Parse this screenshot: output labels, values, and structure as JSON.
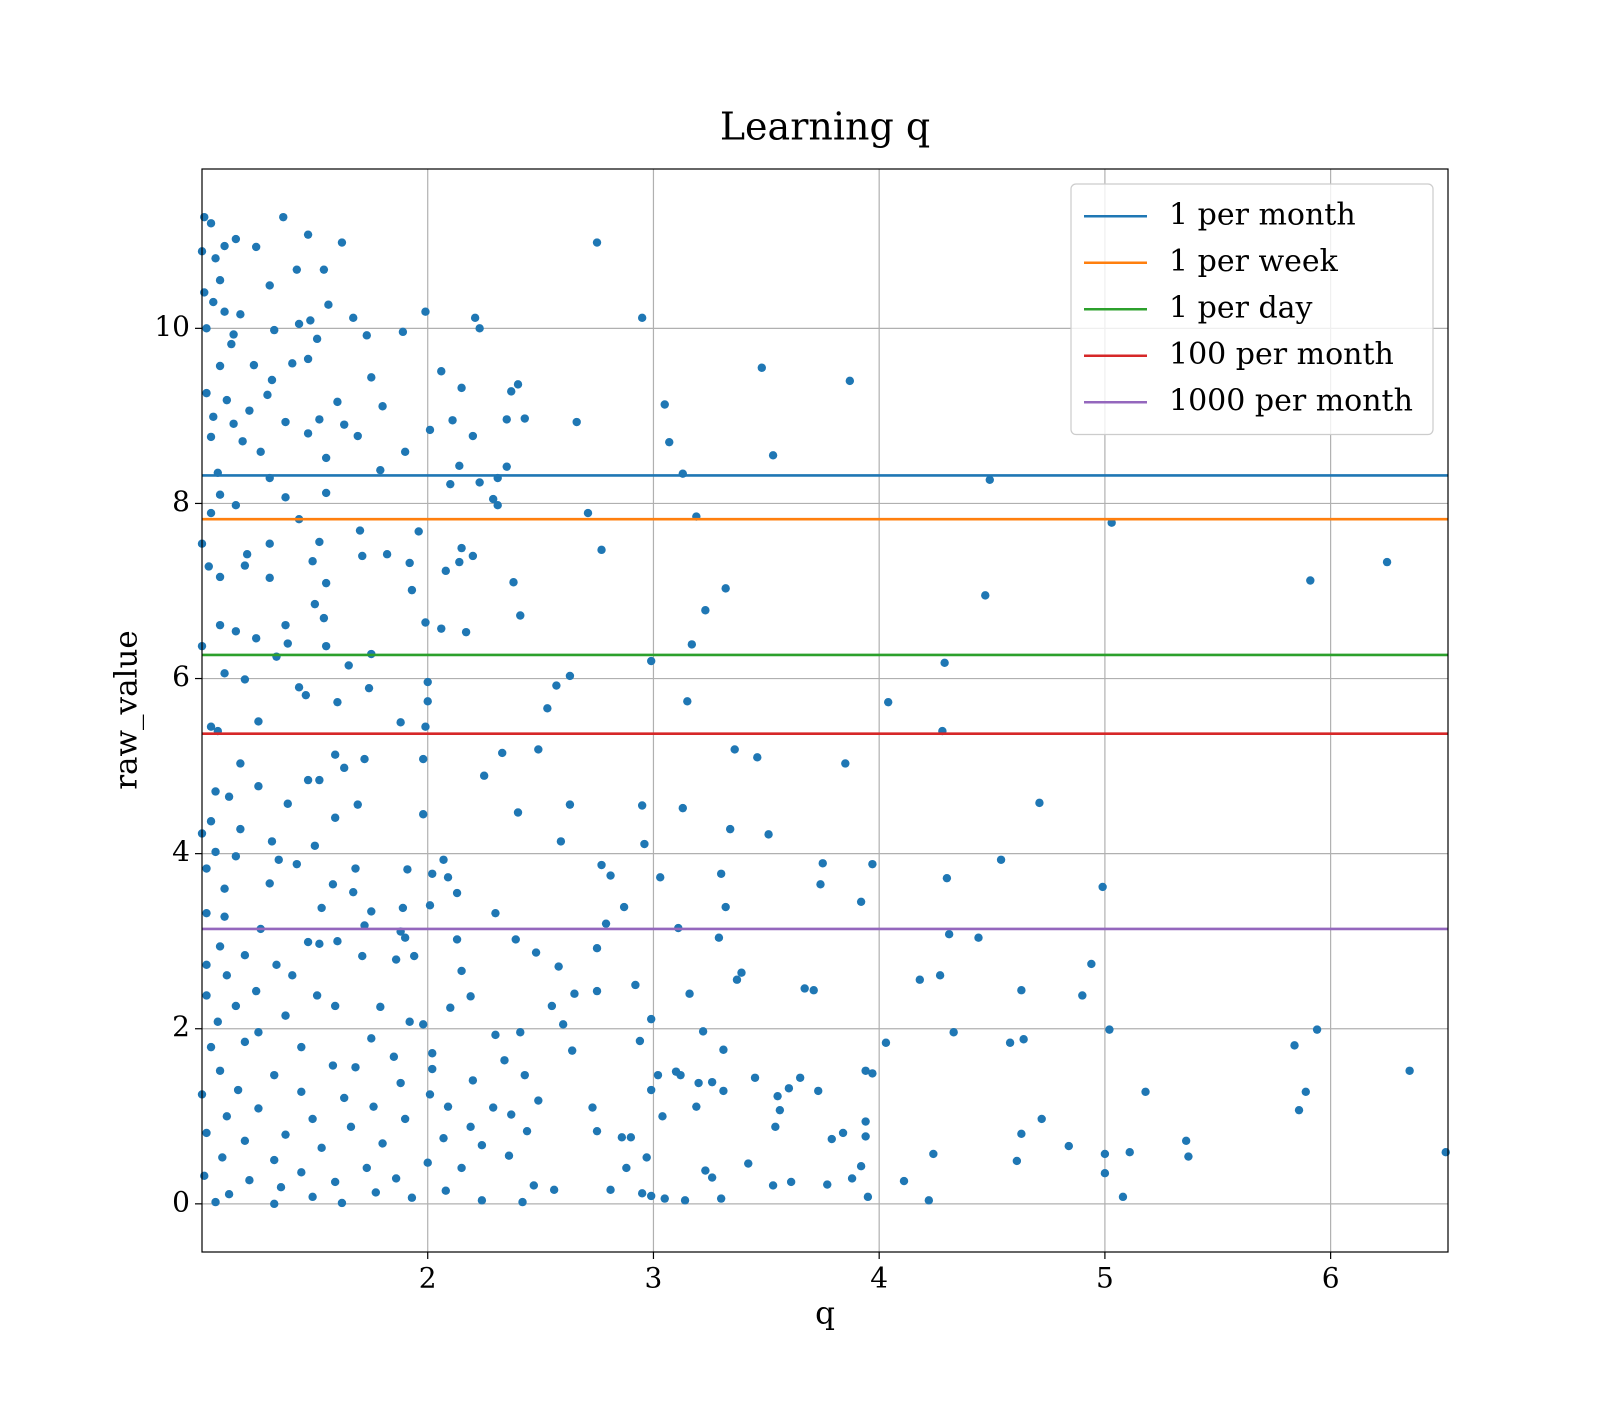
{
  "chart_data": {
    "type": "scatter",
    "title": "Learning q",
    "xlabel": "q",
    "ylabel": "raw_value",
    "xlim": [
      1.0,
      6.52
    ],
    "ylim": [
      -0.55,
      11.82
    ],
    "xticks": [
      2,
      3,
      4,
      5,
      6
    ],
    "yticks": [
      0,
      2,
      4,
      6,
      8,
      10
    ],
    "grid": true,
    "legend": "upper right",
    "points": {
      "color": "#1f77b4",
      "x": [
        2.75,
        2.95,
        3.48,
        3.87,
        3.05,
        3.07,
        3.53,
        3.13,
        4.49,
        3.19,
        2.71,
        5.03,
        2.77,
        3.32,
        6.25,
        5.91,
        4.47,
        3.23,
        3.17,
        2.99,
        4.29,
        2.63,
        2.57,
        2.53,
        3.15,
        4.04,
        4.28,
        3.36,
        3.46,
        3.85,
        2.49,
        2.33,
        4.71,
        2.63,
        2.95,
        3.13,
        2.4,
        3.34,
        3.51,
        2.59,
        2.96,
        4.54,
        3.97,
        3.75,
        2.77,
        2.81,
        3.3,
        3.03,
        4.3,
        4.99,
        3.74,
        3.92,
        2.87,
        3.32,
        2.3,
        2.79,
        3.11,
        4.31,
        4.44,
        3.29,
        2.39,
        2.75,
        2.48,
        4.94,
        2.58,
        3.39,
        4.27,
        4.18,
        3.37,
        2.92,
        3.67,
        3.71,
        4.63,
        2.75,
        4.9,
        3.16,
        2.65,
        2.55,
        2.99,
        2.6,
        5.94,
        5.02,
        3.22,
        4.33,
        2.41,
        4.03,
        4.58,
        4.64,
        5.84,
        2.94,
        3.31,
        2.64,
        6.35,
        3.94,
        3.97,
        3.1,
        3.12,
        3.45,
        3.65,
        3.02,
        3.26,
        3.2,
        3.6,
        2.99,
        3.31,
        3.73,
        5.18,
        5.89,
        3.55,
        3.19,
        2.73,
        5.86,
        3.56,
        3.04,
        4.72,
        3.84,
        3.54,
        3.94,
        4.63,
        2.75,
        2.86,
        2.9,
        3.79,
        5.36,
        3.94,
        4.84,
        6.51,
        5.11,
        5.0,
        4.24,
        2.97,
        4.61,
        5.37,
        3.42,
        3.92,
        3.23,
        3.26,
        3.88,
        5.0,
        2.88,
        4.11,
        3.53,
        3.77,
        3.61,
        2.95,
        5.08,
        3.95,
        2.99,
        3.05,
        3.14,
        3.3,
        4.22,
        2.81,
        2.56,
        1.01,
        1.04,
        1.36,
        1.47,
        1.15,
        1.62,
        1.24,
        1.1,
        1.0,
        1.06,
        1.54,
        1.42,
        1.08,
        1.3,
        1.01,
        1.05,
        1.56,
        1.1,
        1.99,
        1.17,
        1.67,
        2.21,
        1.48,
        1.43,
        2.23,
        1.02,
        1.32,
        1.89,
        1.14,
        1.73,
        1.51,
        1.13,
        1.47,
        1.23,
        1.08,
        1.4,
        2.06,
        1.75,
        1.31,
        2.15,
        2.4,
        2.37,
        1.02,
        1.6,
        1.11,
        1.8,
        1.29,
        1.21,
        1.05,
        1.52,
        2.35,
        2.11,
        2.43,
        1.37,
        1.14,
        2.66,
        2.01,
        1.63,
        1.47,
        2.2,
        1.04,
        1.69,
        1.18,
        1.26,
        1.9,
        1.55,
        1.79,
        1.07,
        2.14,
        2.35,
        1.3,
        2.31,
        2.1,
        2.23,
        1.55,
        1.08,
        1.37,
        2.29,
        1.04,
        2.31,
        1.43,
        1.15,
        1.96,
        1.7,
        1.52,
        1.3,
        2.15,
        1.0,
        1.82,
        1.71,
        2.2,
        1.2,
        2.14,
        1.49,
        1.92,
        1.19,
        1.03,
        2.08,
        1.3,
        2.38,
        1.08,
        1.55,
        1.93,
        2.41,
        1.5,
        1.54,
        1.99,
        2.06,
        2.17,
        1.08,
        1.15,
        1.37,
        1.24,
        1.0,
        1.55,
        1.38,
        1.65,
        1.33,
        1.75,
        1.1,
        2.0,
        1.43,
        1.19,
        1.74,
        1.46,
        1.6,
        2.0,
        1.25,
        1.88,
        1.04,
        1.99,
        1.07,
        1.59,
        1.98,
        1.72,
        1.17,
        1.52,
        1.63,
        2.25,
        1.25,
        1.47,
        1.12,
        1.06,
        1.69,
        1.38,
        1.59,
        1.98,
        1.04,
        1.17,
        1.0,
        1.31,
        1.5,
        1.06,
        1.15,
        2.07,
        1.34,
        1.42,
        1.68,
        1.91,
        1.02,
        2.02,
        2.09,
        1.58,
        1.3,
        1.1,
        1.67,
        2.13,
        2.01,
        1.89,
        1.53,
        1.75,
        1.02,
        1.1,
        1.26,
        1.72,
        1.88,
        2.13,
        1.9,
        1.52,
        1.08,
        1.19,
        1.47,
        1.6,
        1.94,
        1.86,
        1.33,
        1.71,
        1.02,
        1.11,
        2.15,
        1.4,
        1.24,
        1.02,
        2.19,
        1.51,
        1.15,
        1.59,
        1.79,
        2.1,
        1.37,
        1.92,
        1.07,
        1.98,
        1.25,
        1.19,
        1.75,
        2.3,
        1.04,
        1.44,
        2.02,
        1.85,
        2.34,
        1.58,
        1.08,
        2.02,
        1.68,
        1.32,
        1.88,
        2.2,
        1.16,
        2.43,
        1.44,
        1.0,
        2.01,
        1.63,
        1.76,
        1.25,
        2.09,
        2.29,
        2.49,
        1.11,
        1.49,
        1.9,
        2.37,
        1.66,
        1.02,
        2.19,
        1.37,
        2.44,
        1.19,
        2.07,
        1.8,
        1.53,
        2.24,
        2.36,
        1.09,
        1.32,
        2.0,
        1.73,
        2.15,
        1.44,
        1.01,
        1.86,
        1.21,
        1.59,
        2.47,
        1.35,
        2.08,
        1.77,
        1.12,
        1.49,
        1.93,
        2.24,
        2.42,
        1.62,
        1.32,
        1.06
      ],
      "y": [
        10.98,
        10.12,
        9.55,
        9.4,
        9.13,
        8.7,
        8.55,
        8.34,
        8.27,
        7.85,
        7.89,
        7.78,
        7.47,
        7.03,
        7.33,
        7.12,
        6.95,
        6.78,
        6.39,
        6.2,
        6.18,
        6.03,
        5.92,
        5.66,
        5.74,
        5.73,
        5.4,
        5.19,
        5.1,
        5.03,
        5.19,
        5.15,
        4.58,
        4.56,
        4.55,
        4.52,
        4.47,
        4.28,
        4.22,
        4.14,
        4.11,
        3.93,
        3.88,
        3.89,
        3.87,
        3.75,
        3.77,
        3.73,
        3.72,
        3.62,
        3.65,
        3.45,
        3.39,
        3.39,
        3.32,
        3.2,
        3.15,
        3.08,
        3.04,
        3.04,
        3.02,
        2.92,
        2.87,
        2.74,
        2.71,
        2.64,
        2.61,
        2.56,
        2.56,
        2.5,
        2.46,
        2.44,
        2.44,
        2.43,
        2.38,
        2.4,
        2.4,
        2.26,
        2.11,
        2.05,
        1.99,
        1.99,
        1.97,
        1.96,
        1.96,
        1.84,
        1.84,
        1.88,
        1.81,
        1.86,
        1.76,
        1.75,
        1.52,
        1.52,
        1.49,
        1.51,
        1.47,
        1.44,
        1.44,
        1.47,
        1.39,
        1.38,
        1.32,
        1.3,
        1.29,
        1.29,
        1.28,
        1.28,
        1.23,
        1.11,
        1.1,
        1.07,
        1.07,
        1.0,
        0.97,
        0.81,
        0.88,
        0.94,
        0.8,
        0.83,
        0.76,
        0.76,
        0.74,
        0.72,
        0.77,
        0.66,
        0.59,
        0.59,
        0.57,
        0.57,
        0.53,
        0.49,
        0.54,
        0.46,
        0.43,
        0.38,
        0.3,
        0.29,
        0.35,
        0.41,
        0.26,
        0.21,
        0.22,
        0.25,
        0.12,
        0.08,
        0.08,
        0.09,
        0.06,
        0.04,
        0.06,
        0.04,
        0.16,
        0.16,
        11.27,
        11.2,
        11.27,
        11.07,
        11.02,
        10.98,
        10.93,
        10.94,
        10.88,
        10.8,
        10.67,
        10.67,
        10.55,
        10.49,
        10.41,
        10.3,
        10.27,
        10.19,
        10.19,
        10.16,
        10.12,
        10.12,
        10.09,
        10.05,
        10.0,
        10.0,
        9.98,
        9.96,
        9.93,
        9.92,
        9.88,
        9.82,
        9.65,
        9.58,
        9.57,
        9.6,
        9.51,
        9.44,
        9.41,
        9.32,
        9.36,
        9.28,
        9.26,
        9.16,
        9.18,
        9.11,
        9.24,
        9.06,
        8.99,
        8.96,
        8.96,
        8.95,
        8.97,
        8.93,
        8.91,
        8.93,
        8.84,
        8.9,
        8.8,
        8.77,
        8.76,
        8.77,
        8.71,
        8.59,
        8.59,
        8.52,
        8.38,
        8.35,
        8.43,
        8.42,
        8.29,
        8.29,
        8.22,
        8.24,
        8.12,
        8.1,
        8.07,
        8.05,
        7.89,
        7.98,
        7.82,
        7.98,
        7.68,
        7.69,
        7.56,
        7.54,
        7.49,
        7.54,
        7.42,
        7.4,
        7.4,
        7.42,
        7.33,
        7.34,
        7.32,
        7.29,
        7.28,
        7.23,
        7.15,
        7.1,
        7.16,
        7.09,
        7.01,
        6.72,
        6.85,
        6.69,
        6.64,
        6.57,
        6.53,
        6.61,
        6.54,
        6.61,
        6.46,
        6.37,
        6.37,
        6.4,
        6.15,
        6.25,
        6.28,
        6.06,
        5.96,
        5.9,
        5.99,
        5.89,
        5.81,
        5.73,
        5.74,
        5.51,
        5.5,
        5.45,
        5.45,
        5.4,
        5.13,
        5.08,
        5.08,
        5.03,
        4.84,
        4.98,
        4.89,
        4.77,
        4.84,
        4.65,
        4.71,
        4.56,
        4.57,
        4.41,
        4.45,
        4.37,
        4.28,
        4.23,
        4.14,
        4.09,
        4.02,
        3.97,
        3.93,
        3.93,
        3.88,
        3.83,
        3.82,
        3.83,
        3.77,
        3.73,
        3.65,
        3.66,
        3.6,
        3.56,
        3.55,
        3.41,
        3.38,
        3.38,
        3.34,
        3.32,
        3.28,
        3.14,
        3.18,
        3.11,
        3.02,
        3.04,
        2.97,
        2.94,
        2.84,
        2.99,
        3.0,
        2.83,
        2.79,
        2.73,
        2.83,
        2.73,
        2.61,
        2.66,
        2.61,
        2.43,
        2.38,
        2.37,
        2.38,
        2.26,
        2.26,
        2.25,
        2.24,
        2.15,
        2.08,
        2.08,
        2.05,
        1.96,
        1.85,
        1.89,
        1.93,
        1.79,
        1.79,
        1.72,
        1.68,
        1.64,
        1.58,
        1.52,
        1.54,
        1.56,
        1.47,
        1.38,
        1.41,
        1.3,
        1.47,
        1.28,
        1.25,
        1.25,
        1.21,
        1.11,
        1.09,
        1.11,
        1.1,
        1.18,
        1.0,
        0.97,
        0.97,
        1.02,
        0.88,
        0.81,
        0.88,
        0.79,
        0.83,
        0.72,
        0.75,
        0.69,
        0.64,
        0.67,
        0.55,
        0.53,
        0.5,
        0.47,
        0.41,
        0.41,
        0.36,
        0.32,
        0.29,
        0.27,
        0.25,
        0.21,
        0.19,
        0.15,
        0.13,
        0.11,
        0.08,
        0.07,
        0.04,
        0.02,
        0.01,
        0.0,
        0.02
      ]
    },
    "hlines": [
      {
        "name": "1 per month",
        "color": "#1f77b4",
        "value": 8.32
      },
      {
        "name": "1 per week",
        "color": "#ff7f0e",
        "value": 7.82
      },
      {
        "name": "1 per day",
        "color": "#2ca02c",
        "value": 6.27
      },
      {
        "name": "100 per month",
        "color": "#d62728",
        "value": 5.37
      },
      {
        "name": "1000 per month",
        "color": "#9467bd",
        "value": 3.14
      }
    ]
  }
}
